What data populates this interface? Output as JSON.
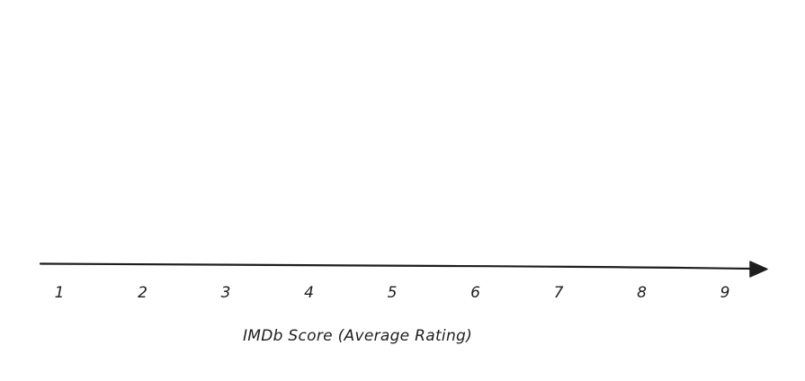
{
  "axis": {
    "ticks": [
      "1",
      "2",
      "3",
      "4",
      "5",
      "6",
      "7",
      "8",
      "9"
    ],
    "title": "IMDb Score (Average Rating)"
  },
  "colors": {
    "stroke": "#1e1e1e",
    "background": "#ffffff"
  }
}
